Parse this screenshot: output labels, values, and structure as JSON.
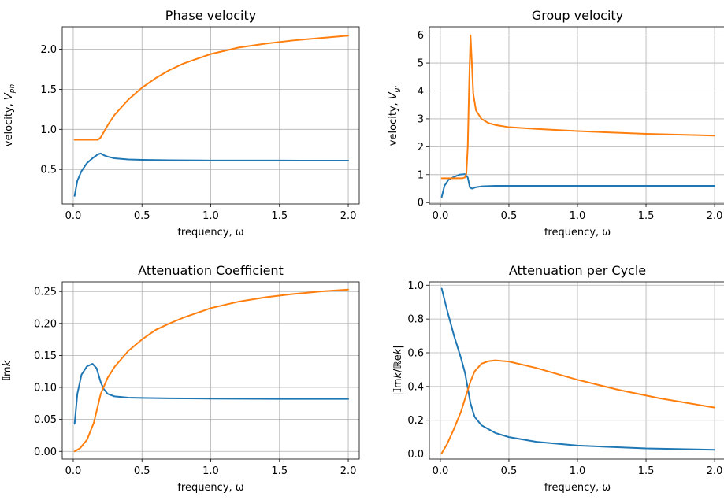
{
  "chart_data": [
    {
      "type": "line",
      "title": "Phase velocity",
      "xlabel": "frequency, ω",
      "ylabel_main": "velocity, ",
      "ylabel_italic": "V",
      "ylabel_sub": "ph",
      "xlim": [
        -0.08,
        2.08
      ],
      "ylim": [
        0.07,
        2.28
      ],
      "xticks": [
        {
          "v": 0.0,
          "label": "0.0"
        },
        {
          "v": 0.5,
          "label": "0.5"
        },
        {
          "v": 1.0,
          "label": "1.0"
        },
        {
          "v": 1.5,
          "label": "1.5"
        },
        {
          "v": 2.0,
          "label": "2.0"
        }
      ],
      "yticks": [
        {
          "v": 0.5,
          "label": "0.5"
        },
        {
          "v": 1.0,
          "label": "1.0"
        },
        {
          "v": 1.5,
          "label": "1.5"
        },
        {
          "v": 2.0,
          "label": "2.0"
        }
      ],
      "grid": true,
      "series": [
        {
          "color": "#1f77b4",
          "x": [
            0.01,
            0.03,
            0.06,
            0.1,
            0.14,
            0.18,
            0.2,
            0.22,
            0.25,
            0.3,
            0.4,
            0.5,
            0.7,
            1.0,
            1.5,
            2.0
          ],
          "y": [
            0.17,
            0.36,
            0.48,
            0.58,
            0.64,
            0.69,
            0.7,
            0.68,
            0.66,
            0.64,
            0.625,
            0.62,
            0.615,
            0.612,
            0.611,
            0.61
          ]
        },
        {
          "color": "#ff7f0e",
          "x": [
            0.01,
            0.1,
            0.18,
            0.2,
            0.25,
            0.3,
            0.4,
            0.5,
            0.6,
            0.7,
            0.8,
            1.0,
            1.2,
            1.4,
            1.6,
            1.8,
            2.0
          ],
          "y": [
            0.87,
            0.87,
            0.87,
            0.9,
            1.05,
            1.18,
            1.37,
            1.52,
            1.64,
            1.74,
            1.82,
            1.94,
            2.02,
            2.07,
            2.11,
            2.14,
            2.17
          ]
        }
      ]
    },
    {
      "type": "line",
      "title": "Group velocity",
      "xlabel": "frequency, ω",
      "ylabel_main": "velocity, ",
      "ylabel_italic": "V",
      "ylabel_sub": "gr",
      "xlim": [
        -0.08,
        2.08
      ],
      "ylim": [
        -0.05,
        6.3
      ],
      "xticks": [
        {
          "v": 0.0,
          "label": "0.0"
        },
        {
          "v": 0.5,
          "label": "0.5"
        },
        {
          "v": 1.0,
          "label": "1.0"
        },
        {
          "v": 1.5,
          "label": "1.5"
        },
        {
          "v": 2.0,
          "label": "2.0"
        }
      ],
      "yticks": [
        {
          "v": 0,
          "label": "0"
        },
        {
          "v": 1,
          "label": "1"
        },
        {
          "v": 2,
          "label": "2"
        },
        {
          "v": 3,
          "label": "3"
        },
        {
          "v": 4,
          "label": "4"
        },
        {
          "v": 5,
          "label": "5"
        },
        {
          "v": 6,
          "label": "6"
        }
      ],
      "grid": true,
      "series": [
        {
          "color": "#1f77b4",
          "x": [
            0.01,
            0.03,
            0.06,
            0.1,
            0.14,
            0.18,
            0.2,
            0.215,
            0.23,
            0.26,
            0.3,
            0.4,
            0.5,
            1.0,
            1.5,
            2.0
          ],
          "y": [
            0.2,
            0.6,
            0.82,
            0.92,
            1.0,
            1.02,
            0.9,
            0.55,
            0.5,
            0.55,
            0.58,
            0.6,
            0.6,
            0.6,
            0.6,
            0.6
          ]
        },
        {
          "color": "#ff7f0e",
          "x": [
            0.01,
            0.1,
            0.16,
            0.18,
            0.19,
            0.2,
            0.21,
            0.22,
            0.23,
            0.24,
            0.26,
            0.3,
            0.35,
            0.4,
            0.5,
            0.7,
            1.0,
            1.5,
            2.0
          ],
          "y": [
            0.87,
            0.87,
            0.87,
            0.9,
            1.05,
            2.0,
            4.2,
            6.0,
            5.0,
            3.9,
            3.3,
            3.0,
            2.85,
            2.78,
            2.7,
            2.64,
            2.56,
            2.46,
            2.4
          ]
        }
      ]
    },
    {
      "type": "line",
      "title": "Attenuation Coefficient",
      "xlabel": "frequency, ω",
      "ylabel_main": "𝕀m",
      "ylabel_italic": "k",
      "ylabel_sub": "",
      "xlim": [
        -0.08,
        2.08
      ],
      "ylim": [
        -0.012,
        0.265
      ],
      "xticks": [
        {
          "v": 0.0,
          "label": "0.0"
        },
        {
          "v": 0.5,
          "label": "0.5"
        },
        {
          "v": 1.0,
          "label": "1.0"
        },
        {
          "v": 1.5,
          "label": "1.5"
        },
        {
          "v": 2.0,
          "label": "2.0"
        }
      ],
      "yticks": [
        {
          "v": 0.0,
          "label": "0.00"
        },
        {
          "v": 0.05,
          "label": "0.05"
        },
        {
          "v": 0.1,
          "label": "0.10"
        },
        {
          "v": 0.15,
          "label": "0.15"
        },
        {
          "v": 0.2,
          "label": "0.20"
        },
        {
          "v": 0.25,
          "label": "0.25"
        }
      ],
      "grid": true,
      "series": [
        {
          "color": "#1f77b4",
          "x": [
            0.01,
            0.03,
            0.06,
            0.1,
            0.14,
            0.17,
            0.2,
            0.22,
            0.25,
            0.3,
            0.4,
            0.5,
            0.7,
            1.0,
            1.5,
            2.0
          ],
          "y": [
            0.043,
            0.09,
            0.12,
            0.133,
            0.137,
            0.13,
            0.108,
            0.098,
            0.09,
            0.086,
            0.084,
            0.0835,
            0.083,
            0.0825,
            0.082,
            0.082
          ]
        },
        {
          "color": "#ff7f0e",
          "x": [
            0.01,
            0.05,
            0.1,
            0.15,
            0.2,
            0.25,
            0.3,
            0.4,
            0.5,
            0.6,
            0.7,
            0.8,
            1.0,
            1.2,
            1.4,
            1.6,
            1.8,
            2.0
          ],
          "y": [
            0.0,
            0.005,
            0.018,
            0.045,
            0.09,
            0.115,
            0.132,
            0.157,
            0.175,
            0.19,
            0.2,
            0.209,
            0.224,
            0.234,
            0.241,
            0.246,
            0.25,
            0.253
          ]
        }
      ]
    },
    {
      "type": "line",
      "title": "Attenuation per Cycle",
      "xlabel": "frequency, ω",
      "ylabel_main": "|𝕀m",
      "ylabel_italic": "k",
      "ylabel_sub": "",
      "ylabel_mid": "/ℝe",
      "ylabel_italic2": "k",
      "ylabel_end": "|",
      "xlim": [
        -0.08,
        2.08
      ],
      "ylim": [
        -0.03,
        1.02
      ],
      "xticks": [
        {
          "v": 0.0,
          "label": "0.0"
        },
        {
          "v": 0.5,
          "label": "0.5"
        },
        {
          "v": 1.0,
          "label": "1.0"
        },
        {
          "v": 1.5,
          "label": "1.5"
        },
        {
          "v": 2.0,
          "label": "2.0"
        }
      ],
      "yticks": [
        {
          "v": 0.0,
          "label": "0.0"
        },
        {
          "v": 0.2,
          "label": "0.2"
        },
        {
          "v": 0.4,
          "label": "0.4"
        },
        {
          "v": 0.6,
          "label": "0.6"
        },
        {
          "v": 0.8,
          "label": "0.8"
        },
        {
          "v": 1.0,
          "label": "1.0"
        }
      ],
      "grid": true,
      "series": [
        {
          "color": "#1f77b4",
          "x": [
            0.01,
            0.05,
            0.1,
            0.15,
            0.18,
            0.2,
            0.22,
            0.25,
            0.3,
            0.4,
            0.5,
            0.7,
            1.0,
            1.5,
            2.0
          ],
          "y": [
            0.98,
            0.85,
            0.7,
            0.57,
            0.48,
            0.39,
            0.3,
            0.22,
            0.17,
            0.125,
            0.1,
            0.072,
            0.05,
            0.033,
            0.025
          ]
        },
        {
          "color": "#ff7f0e",
          "x": [
            0.01,
            0.05,
            0.1,
            0.15,
            0.2,
            0.22,
            0.25,
            0.3,
            0.35,
            0.4,
            0.5,
            0.7,
            1.0,
            1.3,
            1.6,
            2.0
          ],
          "y": [
            0.005,
            0.06,
            0.15,
            0.25,
            0.38,
            0.43,
            0.49,
            0.535,
            0.55,
            0.555,
            0.548,
            0.51,
            0.44,
            0.38,
            0.33,
            0.275
          ]
        }
      ]
    }
  ]
}
